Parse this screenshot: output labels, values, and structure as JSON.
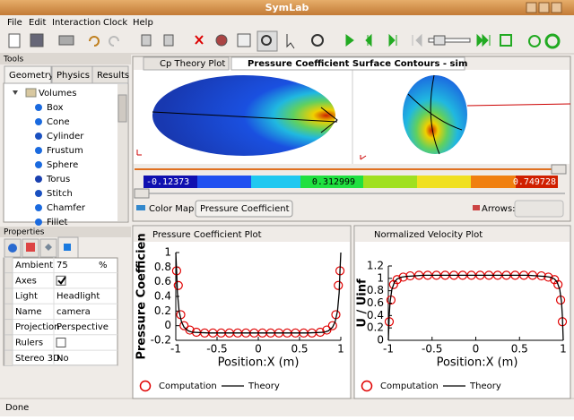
{
  "window": {
    "title": "SymLab"
  },
  "menu": [
    "File",
    "Edit",
    "Interaction",
    "Clock",
    "Help"
  ],
  "tools": {
    "title": "Tools",
    "tabs": [
      "Geometry",
      "Physics",
      "Results"
    ],
    "tree_root": "Volumes",
    "items": [
      "Box",
      "Cone",
      "Cylinder",
      "Frustum",
      "Sphere",
      "Torus",
      "Stitch",
      "Chamfer",
      "Fillet"
    ]
  },
  "properties": {
    "title": "Properties",
    "rows": [
      {
        "label": "Ambient",
        "value": 75,
        "unit": "%"
      },
      {
        "label": "Axes",
        "checked": true
      },
      {
        "label": "Light",
        "value": "Headlight"
      },
      {
        "label": "Name",
        "value": "camera"
      },
      {
        "label": "Projection",
        "value": "Perspective"
      },
      {
        "label": "Rulers",
        "checked": false
      },
      {
        "label": "Stereo 3D",
        "value": "No"
      }
    ]
  },
  "view": {
    "tabs": [
      "Cp Theory Plot",
      "Pressure Coefficient Surface Contours - sim"
    ],
    "colorbar": {
      "min": -0.12373,
      "mid": 0.312999,
      "max": 0.749728
    },
    "color_map_label": "Color Map:",
    "color_map": "Pressure Coefficient",
    "arrows_label": "Arrows:"
  },
  "chart_data": [
    {
      "type": "line",
      "title": "Pressure Coefficient Plot",
      "x_label": "Position:X (m)",
      "y_label": "Pressure Coefficien",
      "xlim": [
        -1,
        1
      ],
      "xticks": [
        -1,
        -0.5,
        0,
        0.5,
        1
      ],
      "ylim": [
        -0.2,
        1
      ],
      "yticks": [
        -0.2,
        0,
        0.2,
        0.4,
        0.6,
        0.8,
        1
      ],
      "series": [
        {
          "name": "Computation",
          "color": "#e00000",
          "marker": "circle",
          "x": [
            -0.99,
            -0.97,
            -0.94,
            -0.9,
            -0.83,
            -0.75,
            -0.65,
            -0.55,
            -0.45,
            -0.35,
            -0.25,
            -0.15,
            -0.05,
            0.05,
            0.15,
            0.25,
            0.35,
            0.45,
            0.55,
            0.65,
            0.75,
            0.83,
            0.9,
            0.94,
            0.97,
            0.99
          ],
          "values": [
            0.75,
            0.55,
            0.15,
            0,
            -0.06,
            -0.09,
            -0.1,
            -0.1,
            -0.1,
            -0.1,
            -0.1,
            -0.1,
            -0.1,
            -0.1,
            -0.1,
            -0.1,
            -0.1,
            -0.1,
            -0.1,
            -0.1,
            -0.09,
            -0.06,
            0,
            0.15,
            0.55,
            0.75
          ]
        },
        {
          "name": "Theory",
          "color": "#000000",
          "marker": "none",
          "x": [
            -1,
            -0.99,
            -0.98,
            -0.96,
            -0.93,
            -0.9,
            -0.85,
            -0.8,
            -0.6,
            -0.3,
            0,
            0.3,
            0.6,
            0.8,
            0.85,
            0.9,
            0.93,
            0.96,
            0.98,
            0.99,
            1
          ],
          "values": [
            1,
            0.75,
            0.45,
            0.2,
            0.05,
            -0.02,
            -0.07,
            -0.09,
            -0.1,
            -0.1,
            -0.1,
            -0.1,
            -0.1,
            -0.09,
            -0.07,
            -0.02,
            0.05,
            0.2,
            0.45,
            0.75,
            1
          ]
        }
      ]
    },
    {
      "type": "line",
      "title": "Normalized Velocity Plot",
      "x_label": "Position:X (m)",
      "y_label": "U / Uinf",
      "xlim": [
        -1,
        1
      ],
      "xticks": [
        -1,
        -0.5,
        0,
        0.5,
        1
      ],
      "ylim": [
        0,
        1.2
      ],
      "yticks": [
        0,
        0.2,
        0.4,
        0.6,
        0.8,
        1,
        1.2
      ],
      "series": [
        {
          "name": "Computation",
          "color": "#e00000",
          "marker": "circle",
          "x": [
            -0.99,
            -0.97,
            -0.94,
            -0.9,
            -0.83,
            -0.75,
            -0.65,
            -0.55,
            -0.45,
            -0.35,
            -0.25,
            -0.15,
            -0.05,
            0.05,
            0.15,
            0.25,
            0.35,
            0.45,
            0.55,
            0.65,
            0.75,
            0.83,
            0.9,
            0.94,
            0.97,
            0.99
          ],
          "values": [
            0.3,
            0.65,
            0.9,
            0.98,
            1.02,
            1.04,
            1.05,
            1.05,
            1.05,
            1.05,
            1.05,
            1.05,
            1.05,
            1.05,
            1.05,
            1.05,
            1.05,
            1.05,
            1.05,
            1.05,
            1.04,
            1.02,
            0.98,
            0.9,
            0.65,
            0.3
          ]
        },
        {
          "name": "Theory",
          "color": "#000000",
          "marker": "none",
          "x": [
            -1,
            -0.99,
            -0.98,
            -0.96,
            -0.93,
            -0.9,
            -0.85,
            -0.8,
            -0.6,
            -0.3,
            0,
            0.3,
            0.6,
            0.8,
            0.85,
            0.9,
            0.93,
            0.96,
            0.98,
            0.99,
            1
          ],
          "values": [
            0,
            0.4,
            0.62,
            0.82,
            0.94,
            0.99,
            1.02,
            1.03,
            1.05,
            1.05,
            1.05,
            1.05,
            1.05,
            1.03,
            1.02,
            0.99,
            0.94,
            0.82,
            0.62,
            0.4,
            0
          ]
        }
      ]
    }
  ],
  "status": "Done"
}
